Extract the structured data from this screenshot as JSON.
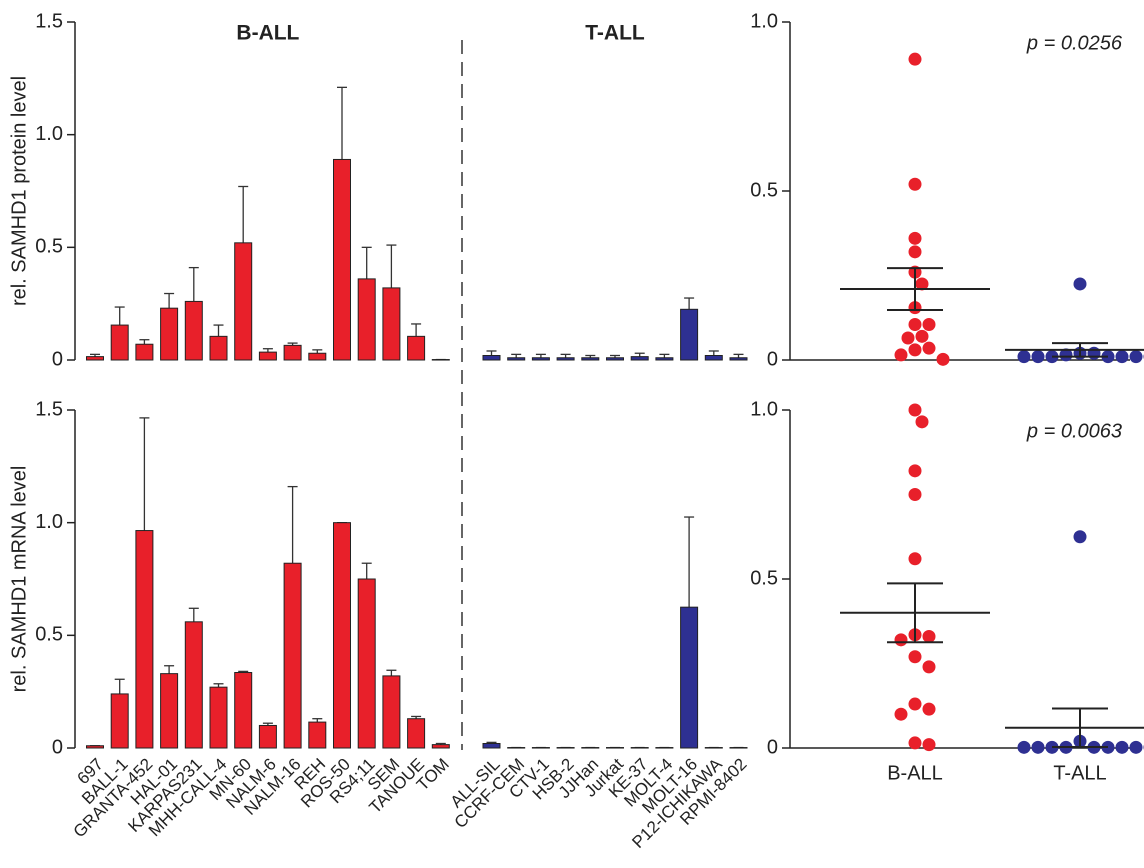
{
  "chart_data": [
    {
      "type": "bar",
      "ylabel": "rel. SAMHD1 protein level",
      "ylim": [
        0,
        1.5
      ],
      "yticks": [
        0,
        0.5,
        {
          "value": 1,
          "label": "1.0"
        },
        1.5
      ],
      "series": [
        {
          "name": "B-ALL",
          "color": "#e8202a",
          "values": [
            0.015,
            0.155,
            0.07,
            0.23,
            0.26,
            0.105,
            0.52,
            0.035,
            0.065,
            0.03,
            0.89,
            0.36,
            0.32,
            0.105,
            0.002,
            null,
            null,
            null,
            null,
            null,
            null,
            null,
            null,
            null,
            null,
            null
          ],
          "errors": [
            0.01,
            0.08,
            0.02,
            0.065,
            0.15,
            0.05,
            0.25,
            0.015,
            0.01,
            0.015,
            0.32,
            0.14,
            0.19,
            0.055,
            0,
            null,
            null,
            null,
            null,
            null,
            null,
            null,
            null,
            null,
            null,
            null
          ]
        },
        {
          "name": "T-ALL",
          "color": "#2e3092",
          "values": [
            null,
            null,
            null,
            null,
            null,
            null,
            null,
            null,
            null,
            null,
            null,
            null,
            null,
            null,
            null,
            0.02,
            0.01,
            0.01,
            0.01,
            0.01,
            0.01,
            0.015,
            0.01,
            0.225,
            0.02,
            0.01
          ],
          "errors": [
            null,
            null,
            null,
            null,
            null,
            null,
            null,
            null,
            null,
            null,
            null,
            null,
            null,
            null,
            null,
            0.02,
            0.015,
            0.015,
            0.015,
            0.01,
            0.01,
            0.015,
            0.015,
            0.05,
            0.02,
            0.015
          ]
        }
      ]
    },
    {
      "type": "bar",
      "ylabel": "rel. SAMHD1 mRNA level",
      "categories": [
        "697",
        "BALL-1",
        "GRANTA-452",
        "HAL-01",
        "KARPAS231",
        "MHH-CALL-4",
        "MN-60",
        "NALM-6",
        "NALM-16",
        "REH",
        "ROS-50",
        "RS4;11",
        "SEM",
        "TANOUE",
        "TOM",
        "ALL-SIL",
        "CCRF-CEM",
        "CTV-1",
        "HSB-2",
        "JJHan",
        "Jurkat",
        "KE-37",
        "MOLT-4",
        "MOLT-16",
        "P12-ICHIKAWA",
        "RPMI-8402"
      ],
      "ylim": [
        0,
        1.5
      ],
      "yticks": [
        0,
        0.5,
        {
          "value": 1,
          "label": "1.0"
        },
        1.5
      ],
      "series": [
        {
          "color": "#e8202a",
          "values": [
            0.01,
            0.24,
            0.965,
            0.33,
            0.56,
            0.27,
            0.335,
            0.1,
            0.82,
            0.115,
            1.0,
            0.75,
            0.32,
            0.13,
            0.015,
            null,
            null,
            null,
            null,
            null,
            null,
            null,
            null,
            null,
            null,
            null
          ],
          "errors": [
            0,
            0.065,
            0.5,
            0.035,
            0.06,
            0.015,
            0.005,
            0.01,
            0.34,
            0.015,
            0,
            0.07,
            0.025,
            0.01,
            0.005,
            null,
            null,
            null,
            null,
            null,
            null,
            null,
            null,
            null,
            null,
            null
          ]
        },
        {
          "color": "#2e3092",
          "values": [
            null,
            null,
            null,
            null,
            null,
            null,
            null,
            null,
            null,
            null,
            null,
            null,
            null,
            null,
            null,
            0.02,
            0.002,
            0.002,
            0.002,
            0.002,
            0.002,
            0.002,
            0.002,
            0.625,
            0.002,
            0.002
          ],
          "errors": [
            null,
            null,
            null,
            null,
            null,
            null,
            null,
            null,
            null,
            null,
            null,
            null,
            null,
            null,
            null,
            0.005,
            0,
            0,
            0,
            0,
            0,
            0,
            0,
            0.4,
            0,
            0
          ]
        }
      ]
    },
    {
      "type": "strip",
      "annotation": "p = 0.0256",
      "categories": [
        null,
        null
      ],
      "ylim": [
        0,
        1
      ],
      "yticks": [
        0,
        0.5,
        {
          "value": 1,
          "label": "1.0"
        }
      ],
      "series": [
        {
          "color": "#e8202a",
          "values": [
            0.89,
            0.52,
            0.36,
            0.32,
            0.26,
            0.225,
            0.155,
            0.105,
            0.105,
            0.07,
            0.065,
            0.035,
            0.03,
            0.015,
            0.002
          ],
          "mean": 0.21,
          "sem": 0.062
        },
        {
          "color": "#2e3092",
          "values": [
            0.225,
            0.02,
            0.02,
            0.015,
            0.01,
            0.01,
            0.01,
            0.01,
            0.01,
            0.01,
            0.01
          ],
          "mean": 0.03,
          "sem": 0.02
        }
      ]
    },
    {
      "type": "strip",
      "annotation": "p = 0.0063",
      "categories": [
        "B-ALL",
        "T-ALL"
      ],
      "ylim": [
        0,
        1
      ],
      "yticks": [
        0,
        0.5,
        {
          "value": 1,
          "label": "1.0"
        }
      ],
      "series": [
        {
          "color": "#e8202a",
          "values": [
            1.0,
            0.965,
            0.82,
            0.75,
            0.56,
            0.335,
            0.33,
            0.32,
            0.27,
            0.24,
            0.13,
            0.115,
            0.1,
            0.015,
            0.01
          ],
          "mean": 0.4,
          "sem": 0.087
        },
        {
          "color": "#2e3092",
          "values": [
            0.625,
            0.02,
            0.002,
            0.002,
            0.002,
            0.002,
            0.002,
            0.002,
            0.002,
            0.002,
            0.002
          ],
          "mean": 0.06,
          "sem": 0.057
        }
      ]
    }
  ]
}
